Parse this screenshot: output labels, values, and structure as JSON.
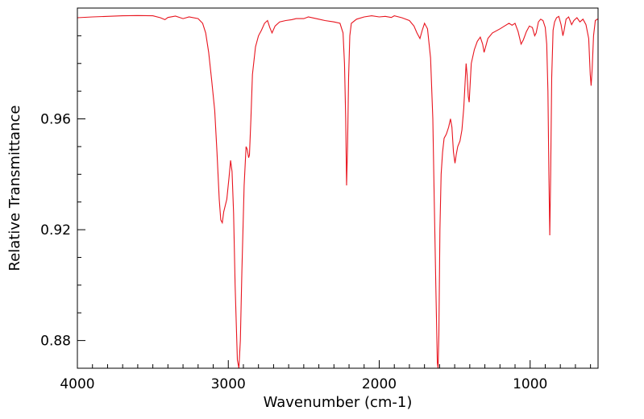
{
  "chart_data": {
    "type": "line",
    "title": "",
    "xlabel": "Wavenumber (cm-1)",
    "ylabel": "Relative Transmittance",
    "xlim": [
      4000,
      550
    ],
    "ylim": [
      0.87,
      1.0
    ],
    "x_ticks": [
      {
        "value": 4000,
        "label": "4000"
      },
      {
        "value": 3000,
        "label": "3000"
      },
      {
        "value": 2000,
        "label": "2000"
      },
      {
        "value": 1000,
        "label": "1000"
      }
    ],
    "y_ticks": [
      {
        "value": 0.96,
        "label": "0.96"
      },
      {
        "value": 0.92,
        "label": "0.92"
      },
      {
        "value": 0.88,
        "label": "0.88"
      }
    ],
    "grid": false,
    "series": [
      {
        "color": "#e8141e",
        "points": [
          [
            4000,
            0.9965
          ],
          [
            3900,
            0.9968
          ],
          [
            3800,
            0.997
          ],
          [
            3700,
            0.9972
          ],
          [
            3600,
            0.9973
          ],
          [
            3500,
            0.9972
          ],
          [
            3450,
            0.9965
          ],
          [
            3420,
            0.9958
          ],
          [
            3400,
            0.9966
          ],
          [
            3350,
            0.9971
          ],
          [
            3300,
            0.9962
          ],
          [
            3260,
            0.9968
          ],
          [
            3200,
            0.9962
          ],
          [
            3170,
            0.9945
          ],
          [
            3150,
            0.991
          ],
          [
            3130,
            0.984
          ],
          [
            3110,
            0.974
          ],
          [
            3090,
            0.963
          ],
          [
            3075,
            0.948
          ],
          [
            3060,
            0.931
          ],
          [
            3050,
            0.9235
          ],
          [
            3040,
            0.9225
          ],
          [
            3030,
            0.9265
          ],
          [
            3010,
            0.931
          ],
          [
            2995,
            0.939
          ],
          [
            2985,
            0.945
          ],
          [
            2975,
            0.941
          ],
          [
            2965,
            0.926
          ],
          [
            2955,
            0.9
          ],
          [
            2940,
            0.873
          ],
          [
            2930,
            0.87
          ],
          [
            2920,
            0.88
          ],
          [
            2910,
            0.905
          ],
          [
            2895,
            0.936
          ],
          [
            2882,
            0.95
          ],
          [
            2875,
            0.949
          ],
          [
            2865,
            0.946
          ],
          [
            2860,
            0.947
          ],
          [
            2850,
            0.96
          ],
          [
            2840,
            0.976
          ],
          [
            2820,
            0.986
          ],
          [
            2800,
            0.99
          ],
          [
            2780,
            0.992
          ],
          [
            2760,
            0.9945
          ],
          [
            2740,
            0.9955
          ],
          [
            2725,
            0.993
          ],
          [
            2710,
            0.991
          ],
          [
            2690,
            0.9935
          ],
          [
            2660,
            0.995
          ],
          [
            2620,
            0.9955
          ],
          [
            2580,
            0.9958
          ],
          [
            2550,
            0.9962
          ],
          [
            2500,
            0.9962
          ],
          [
            2470,
            0.9968
          ],
          [
            2400,
            0.996
          ],
          [
            2360,
            0.9955
          ],
          [
            2300,
            0.995
          ],
          [
            2260,
            0.9945
          ],
          [
            2240,
            0.991
          ],
          [
            2230,
            0.98
          ],
          [
            2222,
            0.96
          ],
          [
            2216,
            0.936
          ],
          [
            2210,
            0.95
          ],
          [
            2203,
            0.975
          ],
          [
            2195,
            0.99
          ],
          [
            2185,
            0.9945
          ],
          [
            2150,
            0.996
          ],
          [
            2100,
            0.9968
          ],
          [
            2050,
            0.9972
          ],
          [
            2000,
            0.9968
          ],
          [
            1960,
            0.997
          ],
          [
            1920,
            0.9966
          ],
          [
            1900,
            0.9972
          ],
          [
            1850,
            0.9965
          ],
          [
            1800,
            0.9955
          ],
          [
            1770,
            0.9935
          ],
          [
            1750,
            0.991
          ],
          [
            1730,
            0.989
          ],
          [
            1715,
            0.992
          ],
          [
            1700,
            0.9945
          ],
          [
            1680,
            0.9925
          ],
          [
            1660,
            0.982
          ],
          [
            1645,
            0.96
          ],
          [
            1635,
            0.93
          ],
          [
            1625,
            0.9
          ],
          [
            1615,
            0.872
          ],
          [
            1610,
            0.87
          ],
          [
            1605,
            0.882
          ],
          [
            1598,
            0.92
          ],
          [
            1590,
            0.94
          ],
          [
            1580,
            0.948
          ],
          [
            1570,
            0.953
          ],
          [
            1555,
            0.9545
          ],
          [
            1540,
            0.957
          ],
          [
            1528,
            0.96
          ],
          [
            1518,
            0.957
          ],
          [
            1508,
            0.948
          ],
          [
            1498,
            0.944
          ],
          [
            1490,
            0.947
          ],
          [
            1480,
            0.95
          ],
          [
            1465,
            0.952
          ],
          [
            1452,
            0.956
          ],
          [
            1440,
            0.964
          ],
          [
            1430,
            0.974
          ],
          [
            1424,
            0.98
          ],
          [
            1418,
            0.976
          ],
          [
            1410,
            0.968
          ],
          [
            1404,
            0.966
          ],
          [
            1398,
            0.972
          ],
          [
            1390,
            0.98
          ],
          [
            1370,
            0.985
          ],
          [
            1350,
            0.988
          ],
          [
            1330,
            0.9895
          ],
          [
            1315,
            0.987
          ],
          [
            1305,
            0.984
          ],
          [
            1295,
            0.986
          ],
          [
            1280,
            0.989
          ],
          [
            1250,
            0.991
          ],
          [
            1200,
            0.9925
          ],
          [
            1170,
            0.9935
          ],
          [
            1140,
            0.9945
          ],
          [
            1120,
            0.9938
          ],
          [
            1100,
            0.9945
          ],
          [
            1080,
            0.9915
          ],
          [
            1060,
            0.987
          ],
          [
            1045,
            0.9885
          ],
          [
            1025,
            0.9915
          ],
          [
            1005,
            0.9935
          ],
          [
            985,
            0.993
          ],
          [
            970,
            0.99
          ],
          [
            960,
            0.991
          ],
          [
            945,
            0.995
          ],
          [
            930,
            0.996
          ],
          [
            915,
            0.9955
          ],
          [
            900,
            0.993
          ],
          [
            890,
            0.987
          ],
          [
            882,
            0.97
          ],
          [
            876,
            0.94
          ],
          [
            870,
            0.918
          ],
          [
            864,
            0.94
          ],
          [
            857,
            0.975
          ],
          [
            848,
            0.992
          ],
          [
            838,
            0.995
          ],
          [
            825,
            0.9965
          ],
          [
            810,
            0.997
          ],
          [
            795,
            0.994
          ],
          [
            783,
            0.99
          ],
          [
            775,
            0.992
          ],
          [
            762,
            0.996
          ],
          [
            745,
            0.9968
          ],
          [
            725,
            0.994
          ],
          [
            710,
            0.9955
          ],
          [
            690,
            0.9965
          ],
          [
            670,
            0.995
          ],
          [
            650,
            0.996
          ],
          [
            630,
            0.994
          ],
          [
            612,
            0.989
          ],
          [
            602,
            0.976
          ],
          [
            596,
            0.972
          ],
          [
            589,
            0.978
          ],
          [
            580,
            0.99
          ],
          [
            568,
            0.9955
          ],
          [
            555,
            0.996
          ],
          [
            550,
            0.9958
          ]
        ]
      }
    ]
  }
}
